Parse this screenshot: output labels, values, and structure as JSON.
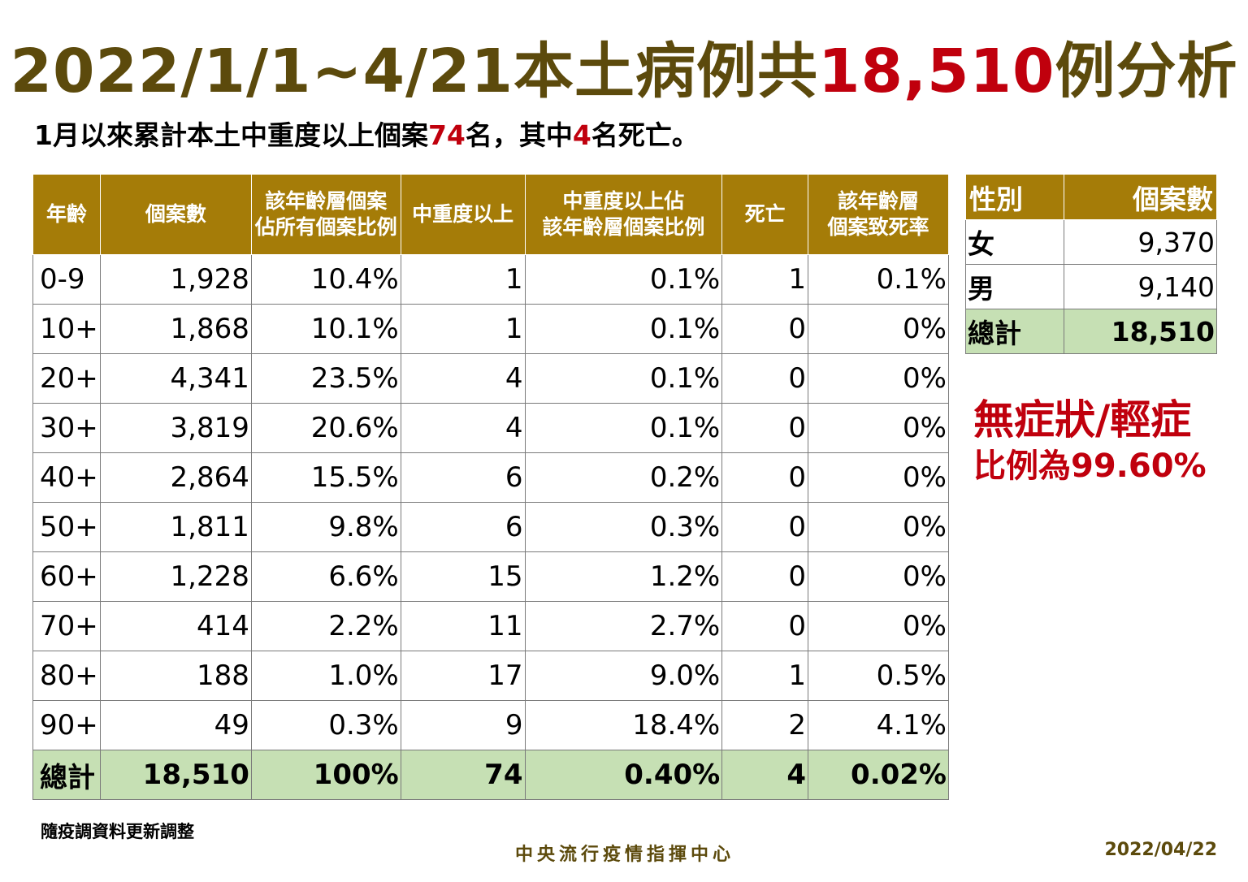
{
  "title": {
    "part1": "2022/1/1~4/21本土病例共",
    "highlight": "18,510",
    "part2": "例分析"
  },
  "subtitle": {
    "part1": "1月以來累計本土中重度以上個案",
    "num1": "74",
    "part2": "名，其中",
    "num2": "4",
    "part3": "名死亡。"
  },
  "age_table": {
    "headers": [
      {
        "line1": "年齡",
        "line2": ""
      },
      {
        "line1": "個案數",
        "line2": ""
      },
      {
        "line1": "該年齡層個案",
        "line2": "佔所有個案比例"
      },
      {
        "line1": "中重度以上",
        "line2": ""
      },
      {
        "line1": "中重度以上佔",
        "line2": "該年齡層個案比例"
      },
      {
        "line1": "死亡",
        "line2": ""
      },
      {
        "line1": "該年齡層",
        "line2": "個案致死率"
      }
    ],
    "rows": [
      [
        "0-9",
        "1,928",
        "10.4%",
        "1",
        "0.1%",
        "1",
        "0.1%"
      ],
      [
        "10+",
        "1,868",
        "10.1%",
        "1",
        "0.1%",
        "0",
        "0%"
      ],
      [
        "20+",
        "4,341",
        "23.5%",
        "4",
        "0.1%",
        "0",
        "0%"
      ],
      [
        "30+",
        "3,819",
        "20.6%",
        "4",
        "0.1%",
        "0",
        "0%"
      ],
      [
        "40+",
        "2,864",
        "15.5%",
        "6",
        "0.2%",
        "0",
        "0%"
      ],
      [
        "50+",
        "1,811",
        "9.8%",
        "6",
        "0.3%",
        "0",
        "0%"
      ],
      [
        "60+",
        "1,228",
        "6.6%",
        "15",
        "1.2%",
        "0",
        "0%"
      ],
      [
        "70+",
        "414",
        "2.2%",
        "11",
        "2.7%",
        "0",
        "0%"
      ],
      [
        "80+",
        "188",
        "1.0%",
        "17",
        "9.0%",
        "1",
        "0.5%"
      ],
      [
        "90+",
        "49",
        "0.3%",
        "9",
        "18.4%",
        "2",
        "4.1%"
      ]
    ],
    "total": [
      "總計",
      "18,510",
      "100%",
      "74",
      "0.40%",
      "4",
      "0.02%"
    ]
  },
  "gender_table": {
    "headers": [
      "性別",
      "個案數"
    ],
    "rows": [
      [
        "女",
        "9,370"
      ],
      [
        "男",
        "9,140"
      ]
    ],
    "total": [
      "總計",
      "18,510"
    ]
  },
  "callout": {
    "line1": "無症狀/輕症",
    "line2": "比例為99.60%"
  },
  "note": "隨疫調資料更新調整",
  "footer": "中央流行疫情指揮中心",
  "date": "2022/04/22",
  "colors": {
    "header_gold": "#a57c08",
    "title_brown": "#5c4a0c",
    "highlight_red": "#c0000d",
    "total_green": "#c6e0b4"
  }
}
